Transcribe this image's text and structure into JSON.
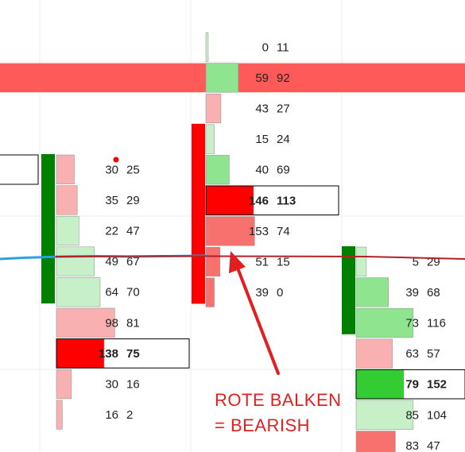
{
  "colors": {
    "bid_strong": "#ff0000",
    "bid_medium": "#f7716e",
    "bid_light": "#f9b0b0",
    "ask_strong": "#33cc33",
    "ask_medium": "#8fe58f",
    "ask_light": "#c8f0c8",
    "delta_red": "#ff0000",
    "delta_green": "#008000",
    "highlight_band": "#ff5a5a",
    "blue_line": "#2ba2e0",
    "red_line": "#b22222",
    "annotation": "#e02020",
    "grid": "#ececec",
    "text": "#222222"
  },
  "annotation": {
    "line1": "ROTE BALKEN",
    "line2": "= BEARISH"
  },
  "chart_data": {
    "type": "footprint",
    "columns": [
      {
        "name": "column-1",
        "delta_bar": "bullish",
        "rows": [
          {
            "bid": 30,
            "ask": 25
          },
          {
            "bid": 35,
            "ask": 29
          },
          {
            "bid": 22,
            "ask": 47
          },
          {
            "bid": 49,
            "ask": 67
          },
          {
            "bid": 64,
            "ask": 70
          },
          {
            "bid": 98,
            "ask": 81
          },
          {
            "bid": 138,
            "ask": 75,
            "highlight": true
          },
          {
            "bid": 30,
            "ask": 16
          },
          {
            "bid": 16,
            "ask": 2
          }
        ]
      },
      {
        "name": "column-2",
        "delta_bar": "bearish",
        "rows": [
          {
            "bid": 0,
            "ask": 11
          },
          {
            "bid": 59,
            "ask": 92
          },
          {
            "bid": 43,
            "ask": 27
          },
          {
            "bid": 15,
            "ask": 24
          },
          {
            "bid": 40,
            "ask": 69
          },
          {
            "bid": 146,
            "ask": 113,
            "highlight": true
          },
          {
            "bid": 153,
            "ask": 74
          },
          {
            "bid": 51,
            "ask": 15
          },
          {
            "bid": 39,
            "ask": 0
          }
        ]
      },
      {
        "name": "column-3",
        "delta_bar": "bullish",
        "rows": [
          {
            "bid": 5,
            "ask": 29
          },
          {
            "bid": 39,
            "ask": 68
          },
          {
            "bid": 73,
            "ask": 116
          },
          {
            "bid": 63,
            "ask": 57
          },
          {
            "bid": 79,
            "ask": 152,
            "highlight": true
          },
          {
            "bid": 85,
            "ask": 104
          },
          {
            "bid": 83,
            "ask": 47
          }
        ]
      }
    ]
  }
}
